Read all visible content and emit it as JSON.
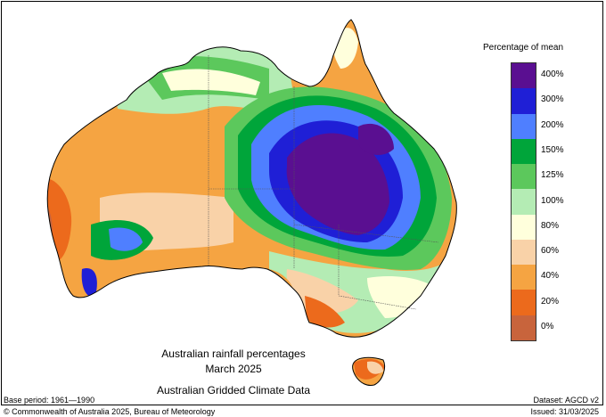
{
  "title": {
    "line1": "Australian rainfall percentages",
    "line2": "March 2025",
    "line3": "Australian Gridded Climate Data"
  },
  "legend": {
    "title": "Percentage of mean",
    "items": [
      {
        "label": "400%",
        "color": "#5a0f91"
      },
      {
        "label": "300%",
        "color": "#1f1fd6"
      },
      {
        "label": "200%",
        "color": "#4f7fff"
      },
      {
        "label": "150%",
        "color": "#00a53a"
      },
      {
        "label": "125%",
        "color": "#5cc85c"
      },
      {
        "label": "100%",
        "color": "#b4ecb4"
      },
      {
        "label": "80%",
        "color": "#ffffdc"
      },
      {
        "label": "60%",
        "color": "#f9d2a8"
      },
      {
        "label": "40%",
        "color": "#f5a442"
      },
      {
        "label": "20%",
        "color": "#ec6a1c"
      },
      {
        "label": "0%",
        "color": "#c8643c"
      }
    ]
  },
  "footer": {
    "base_period": "Base period: 1961—1990",
    "dataset": "Dataset: AGCD v2",
    "copyright": "© Commonwealth of Australia 2025, Bureau of Meteorology",
    "issued": "Issued: 31/03/2025"
  }
}
